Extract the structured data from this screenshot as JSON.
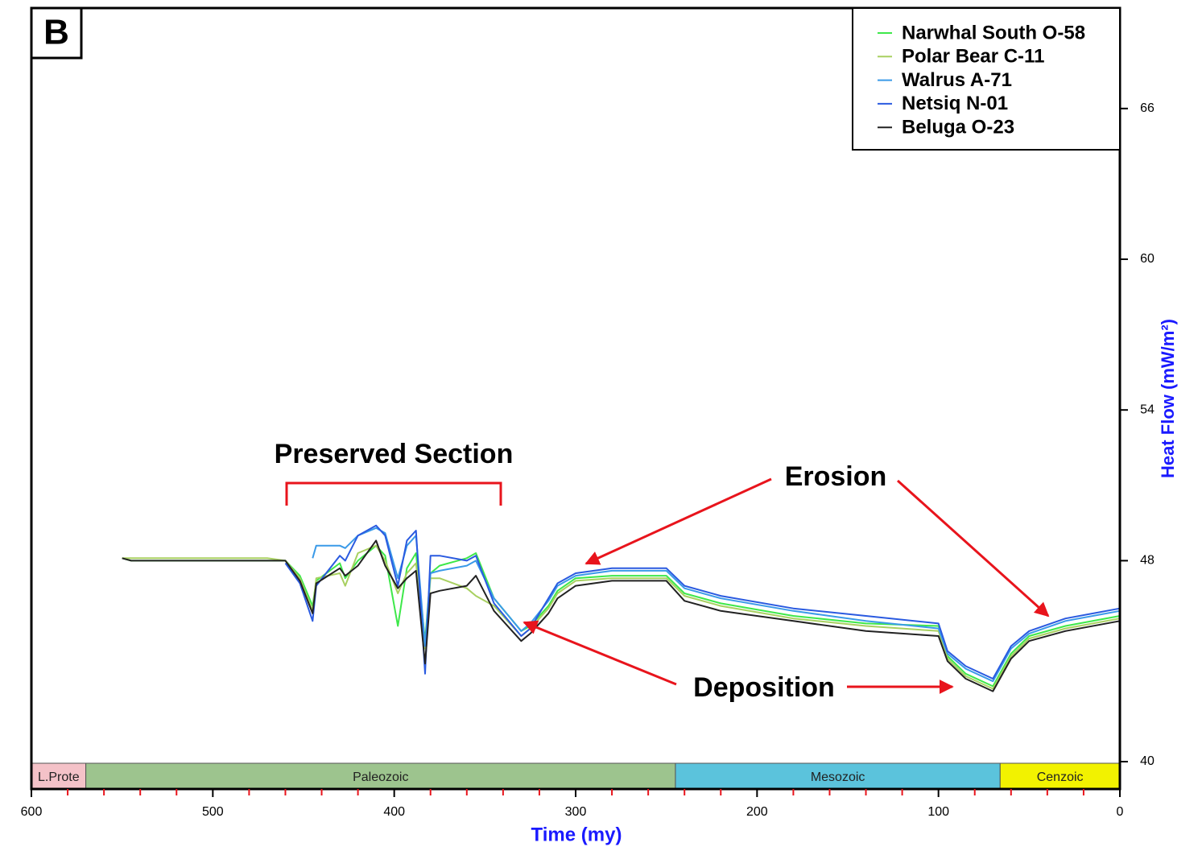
{
  "chart_data": {
    "type": "line",
    "panel_label": "B",
    "x_label": "Time (my)",
    "y_label": "Heat Flow (mW/m²)",
    "xlim": [
      600,
      0
    ],
    "xticks": [
      600,
      500,
      400,
      300,
      200,
      100,
      0
    ],
    "xminorticks": [
      580,
      560,
      540,
      520,
      480,
      460,
      440,
      420,
      380,
      360,
      340,
      320,
      280,
      260,
      240,
      220,
      180,
      160,
      140,
      120,
      80,
      60,
      40,
      20
    ],
    "ylim": [
      40,
      70
    ],
    "yticks": [
      40,
      48,
      54,
      60,
      66
    ],
    "y_axis_side": "right",
    "eras": [
      {
        "name": "L.Prote",
        "start": 600,
        "end": 570,
        "color": "#f4c2c8"
      },
      {
        "name": "Paleozoic",
        "start": 570,
        "end": 245,
        "color": "#9dc48e"
      },
      {
        "name": "Mesozoic",
        "start": 245,
        "end": 66,
        "color": "#5bc3dc"
      },
      {
        "name": "Cenzoic",
        "start": 66,
        "end": 0,
        "color": "#f2f200"
      }
    ],
    "annotations": [
      "Preserved Section",
      "Erosion",
      "Deposition"
    ],
    "legend_position": "upper right",
    "x": [
      550,
      545,
      470,
      460,
      452,
      445,
      443,
      430,
      427,
      420,
      410,
      405,
      398,
      393,
      388,
      383,
      380,
      375,
      360,
      355,
      345,
      330,
      325,
      315,
      310,
      300,
      280,
      250,
      240,
      220,
      180,
      140,
      100,
      95,
      85,
      70,
      60,
      50,
      30,
      0
    ],
    "series": [
      {
        "name": "Narwhal South O-58",
        "color": "#3ee84a",
        "values": [
          48.1,
          48.0,
          48.0,
          48.0,
          47.4,
          46.2,
          47.2,
          47.9,
          47.3,
          48.0,
          48.6,
          48.2,
          45.4,
          47.7,
          48.3,
          44.8,
          47.5,
          47.8,
          48.1,
          48.3,
          46.5,
          45.2,
          45.4,
          46.2,
          46.8,
          47.3,
          47.4,
          47.4,
          46.7,
          46.3,
          45.8,
          45.5,
          45.4,
          44.2,
          43.5,
          43.0,
          44.3,
          45.0,
          45.4,
          45.8
        ]
      },
      {
        "name": "Polar Bear C-11",
        "color": "#a8d060",
        "values": [
          48.1,
          48.1,
          48.1,
          48.0,
          47.3,
          46.0,
          47.3,
          47.5,
          47.0,
          48.3,
          48.6,
          48.0,
          46.7,
          47.5,
          47.9,
          44.5,
          47.3,
          47.3,
          46.9,
          46.6,
          46.2,
          45.0,
          45.3,
          46.1,
          46.7,
          47.2,
          47.3,
          47.3,
          46.6,
          46.2,
          45.7,
          45.4,
          45.2,
          44.1,
          43.4,
          42.9,
          44.2,
          44.9,
          45.3,
          45.7
        ]
      },
      {
        "name": "Walrus A-71",
        "color": "#3a9ae8",
        "values": [
          null,
          null,
          null,
          null,
          null,
          48.1,
          48.6,
          48.6,
          48.5,
          49.0,
          49.3,
          49.1,
          47.3,
          48.6,
          49.0,
          44.6,
          47.5,
          47.6,
          47.8,
          48.0,
          46.5,
          45.2,
          45.5,
          46.4,
          47.0,
          47.4,
          47.6,
          47.6,
          46.9,
          46.5,
          46.0,
          45.6,
          45.3,
          44.3,
          43.7,
          43.2,
          44.5,
          45.1,
          45.6,
          46.0
        ]
      },
      {
        "name": "Netsiq N-01",
        "color": "#2a5ae0",
        "values": [
          null,
          null,
          null,
          47.9,
          47.1,
          45.6,
          47.0,
          48.2,
          48.0,
          49.0,
          49.4,
          49.0,
          47.0,
          48.8,
          49.2,
          43.5,
          48.2,
          48.2,
          48.0,
          48.2,
          46.3,
          45.0,
          45.3,
          46.5,
          47.1,
          47.5,
          47.7,
          47.7,
          47.0,
          46.6,
          46.1,
          45.8,
          45.5,
          44.4,
          43.8,
          43.3,
          44.6,
          45.2,
          45.7,
          46.1
        ]
      },
      {
        "name": "Beluga O-23",
        "color": "#222222",
        "values": [
          48.1,
          48.0,
          48.0,
          48.0,
          47.2,
          45.9,
          47.1,
          47.7,
          47.4,
          47.8,
          48.8,
          47.8,
          46.9,
          47.3,
          47.6,
          43.9,
          46.7,
          46.8,
          47.0,
          47.4,
          46.0,
          44.8,
          45.1,
          45.9,
          46.5,
          47.0,
          47.2,
          47.2,
          46.4,
          46.0,
          45.6,
          45.2,
          45.0,
          44.0,
          43.3,
          42.8,
          44.1,
          44.8,
          45.2,
          45.6
        ]
      }
    ]
  }
}
